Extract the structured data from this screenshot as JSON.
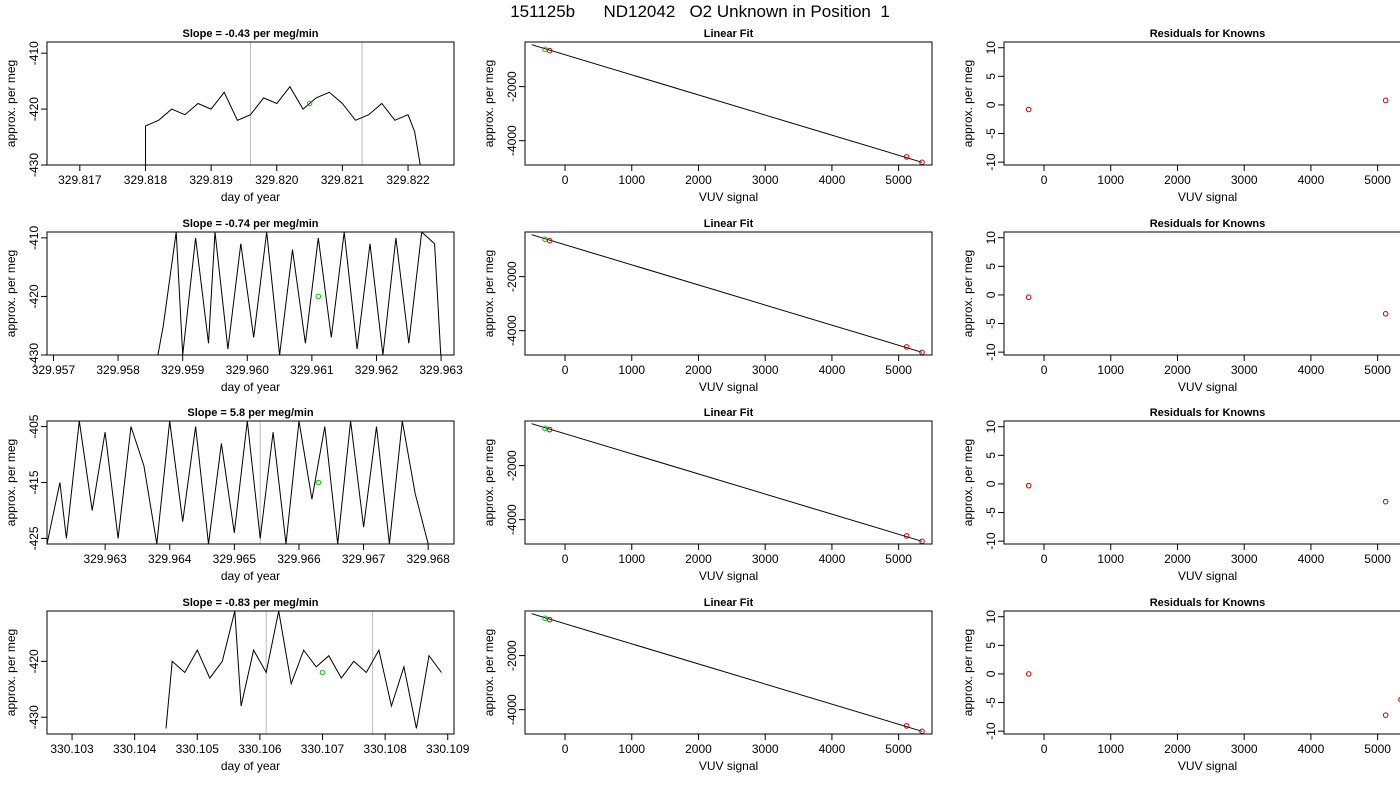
{
  "figure": {
    "title": "151125b      ND12042   O2 Unknown in Position  1"
  },
  "chart_data": [
    {
      "type": "line",
      "title": "Slope =  -0.43  per meg/min",
      "xlabel": "day of year",
      "ylabel": "approx. per meg",
      "xlim": [
        329.8165,
        329.8227
      ],
      "ylim": [
        -430,
        -408
      ],
      "xticks": [
        "329.817",
        "329.818",
        "329.819",
        "329.820",
        "329.821",
        "329.822"
      ],
      "yticks": [
        "-410",
        "-420",
        "-430"
      ],
      "vlines": [
        329.8196,
        329.8213
      ],
      "series": [
        {
          "x": [
            329.818,
            329.818,
            329.8182,
            329.8184,
            329.8186,
            329.8188,
            329.819,
            329.8192,
            329.8194,
            329.8196,
            329.8198,
            329.82,
            329.8202,
            329.8204,
            329.8206,
            329.8208,
            329.821,
            329.8212,
            329.8214,
            329.8216,
            329.8218,
            329.822,
            329.8221,
            329.8222
          ],
          "y": [
            -431,
            -423,
            -422,
            -420,
            -421,
            -419,
            -420,
            -417,
            -422,
            -421,
            -418,
            -419,
            -416,
            -420,
            -418,
            -417,
            -419,
            -422,
            -421,
            -419,
            -422,
            -421,
            -424,
            -431
          ]
        }
      ],
      "points": [
        {
          "x": 329.8205,
          "y": -419,
          "color": "#00cc00"
        }
      ]
    },
    {
      "type": "line",
      "title": "Linear Fit",
      "xlabel": "VUV signal",
      "ylabel": "approx. per meg",
      "xlim": [
        -600,
        5500
      ],
      "ylim": [
        -4900,
        -350
      ],
      "xticks": [
        0,
        1000,
        2000,
        3000,
        4000,
        5000
      ],
      "yticks": [
        -2000,
        -4000
      ],
      "line": [
        [
          -500,
          -450
        ],
        [
          5350,
          -4800
        ]
      ],
      "points": [
        {
          "x": -300,
          "y": -620,
          "color": "#00cc00"
        },
        {
          "x": -230,
          "y": -670,
          "color": "#cc0000"
        },
        {
          "x": 5120,
          "y": -4600,
          "color": "#cc0000"
        },
        {
          "x": 5350,
          "y": -4800,
          "color": "#cc0000"
        }
      ]
    },
    {
      "type": "scatter",
      "title": "Residuals for Knowns",
      "xlabel": "VUV signal",
      "ylabel": "approx. per meg",
      "xlim": [
        -600,
        5500
      ],
      "ylim": [
        -10.5,
        11
      ],
      "xticks": [
        0,
        1000,
        2000,
        3000,
        4000,
        5000
      ],
      "yticks": [
        10,
        5,
        0,
        -5,
        -10
      ],
      "points": [
        {
          "x": -230,
          "y": -0.8,
          "color": "#cc0000"
        },
        {
          "x": 5120,
          "y": 0.8,
          "color": "#cc0000"
        }
      ]
    },
    {
      "type": "line",
      "title": "Slope =  -0.74  per meg/min",
      "xlabel": "day of year",
      "ylabel": "approx. per meg",
      "xlim": [
        329.9569,
        329.9632
      ],
      "ylim": [
        -430,
        -409
      ],
      "xticks": [
        "329.957",
        "329.958",
        "329.959",
        "329.960",
        "329.961",
        "329.962",
        "329.963"
      ],
      "yticks": [
        "-410",
        "-420",
        "-430"
      ],
      "vlines": [],
      "series": [
        {
          "x": [
            329.9586,
            329.9587,
            329.9589,
            329.959,
            329.9592,
            329.9594,
            329.9595,
            329.9597,
            329.9599,
            329.9601,
            329.9603,
            329.9605,
            329.9607,
            329.9609,
            329.9611,
            329.9613,
            329.9615,
            329.9617,
            329.9619,
            329.9621,
            329.9623,
            329.9625,
            329.9627,
            329.9629,
            329.963
          ],
          "y": [
            -431,
            -425,
            -409,
            -430,
            -410,
            -428,
            -409,
            -429,
            -411,
            -427,
            -409,
            -430,
            -412,
            -428,
            -410,
            -427,
            -409,
            -429,
            -411,
            -430,
            -410,
            -428,
            -409,
            -411,
            -431
          ]
        }
      ],
      "points": [
        {
          "x": 329.9611,
          "y": -420,
          "color": "#00cc00"
        }
      ]
    },
    {
      "type": "line",
      "title": "Linear Fit",
      "xlabel": "VUV signal",
      "ylabel": "approx. per meg",
      "xlim": [
        -600,
        5500
      ],
      "ylim": [
        -4900,
        -350
      ],
      "xticks": [
        0,
        1000,
        2000,
        3000,
        4000,
        5000
      ],
      "yticks": [
        -2000,
        -4000
      ],
      "line": [
        [
          -500,
          -450
        ],
        [
          5350,
          -4800
        ]
      ],
      "points": [
        {
          "x": -300,
          "y": -620,
          "color": "#00cc00"
        },
        {
          "x": -230,
          "y": -670,
          "color": "#cc0000"
        },
        {
          "x": 5120,
          "y": -4600,
          "color": "#cc0000"
        },
        {
          "x": 5350,
          "y": -4800,
          "color": "#cc0000"
        }
      ]
    },
    {
      "type": "scatter",
      "title": "Residuals for Knowns",
      "xlabel": "VUV signal",
      "ylabel": "approx. per meg",
      "xlim": [
        -600,
        5500
      ],
      "ylim": [
        -10.5,
        11
      ],
      "xticks": [
        0,
        1000,
        2000,
        3000,
        4000,
        5000
      ],
      "yticks": [
        10,
        5,
        0,
        -5,
        -10
      ],
      "points": [
        {
          "x": -230,
          "y": -0.4,
          "color": "#cc0000"
        },
        {
          "x": 5120,
          "y": -3.3,
          "color": "#cc0000"
        }
      ]
    },
    {
      "type": "line",
      "title": "Slope =  5.8  per meg/min",
      "xlabel": "day of year",
      "ylabel": "approx. per meg",
      "xlim": [
        329.9621,
        329.9684
      ],
      "ylim": [
        -426,
        -404
      ],
      "xticks": [
        "329.963",
        "329.964",
        "329.965",
        "329.966",
        "329.967",
        "329.968"
      ],
      "yticks": [
        "-405",
        "-415",
        "-425"
      ],
      "vlines": [
        329.9654
      ],
      "series": [
        {
          "x": [
            329.9621,
            329.9623,
            329.9624,
            329.9626,
            329.9628,
            329.963,
            329.9632,
            329.9634,
            329.9636,
            329.9638,
            329.964,
            329.9642,
            329.9644,
            329.9646,
            329.9648,
            329.965,
            329.9652,
            329.9654,
            329.9656,
            329.9658,
            329.966,
            329.9662,
            329.9664,
            329.9666,
            329.9668,
            329.967,
            329.9672,
            329.9674,
            329.9676,
            329.9678,
            329.968
          ],
          "y": [
            -426,
            -415,
            -425,
            -404,
            -420,
            -406,
            -425,
            -405,
            -412,
            -426,
            -404,
            -422,
            -405,
            -426,
            -408,
            -424,
            -404,
            -425,
            -406,
            -426,
            -404,
            -418,
            -405,
            -426,
            -404,
            -423,
            -405,
            -426,
            -404,
            -417,
            -426
          ]
        }
      ],
      "points": [
        {
          "x": 329.9663,
          "y": -415,
          "color": "#00cc00"
        }
      ]
    },
    {
      "type": "line",
      "title": "Linear Fit",
      "xlabel": "VUV signal",
      "ylabel": "approx. per meg",
      "xlim": [
        -600,
        5500
      ],
      "ylim": [
        -4900,
        -350
      ],
      "xticks": [
        0,
        1000,
        2000,
        3000,
        4000,
        5000
      ],
      "yticks": [
        -2000,
        -4000
      ],
      "line": [
        [
          -500,
          -450
        ],
        [
          5350,
          -4800
        ]
      ],
      "points": [
        {
          "x": -300,
          "y": -620,
          "color": "#00cc00"
        },
        {
          "x": -230,
          "y": -670,
          "color": "#cc0000"
        },
        {
          "x": 5120,
          "y": -4600,
          "color": "#cc0000"
        },
        {
          "x": 5350,
          "y": -4800,
          "color": "#cc0000"
        }
      ]
    },
    {
      "type": "scatter",
      "title": "Residuals for Knowns",
      "xlabel": "VUV signal",
      "ylabel": "approx. per meg",
      "xlim": [
        -600,
        5500
      ],
      "ylim": [
        -10.5,
        11
      ],
      "xticks": [
        0,
        1000,
        2000,
        3000,
        4000,
        5000
      ],
      "yticks": [
        10,
        5,
        0,
        -5,
        -10
      ],
      "points": [
        {
          "x": -230,
          "y": -0.3,
          "color": "#cc0000"
        },
        {
          "x": 5120,
          "y": -3.1,
          "color": "#cc0000"
        }
      ]
    },
    {
      "type": "line",
      "title": "Slope =  -0.83  per meg/min",
      "xlabel": "day of year",
      "ylabel": "approx. per meg",
      "xlim": [
        330.1026,
        330.1091
      ],
      "ylim": [
        -433,
        -411
      ],
      "xticks": [
        "330.103",
        "330.104",
        "330.105",
        "330.106",
        "330.107",
        "330.108",
        "330.109"
      ],
      "yticks": [
        "-420",
        "-430"
      ],
      "vlines": [
        330.1061,
        330.1078
      ],
      "series": [
        {
          "x": [
            330.1045,
            330.1046,
            330.1048,
            330.105,
            330.1052,
            330.1054,
            330.1056,
            330.1057,
            330.1059,
            330.1061,
            330.1063,
            330.1065,
            330.1067,
            330.1069,
            330.1071,
            330.1073,
            330.1075,
            330.1077,
            330.1079,
            330.1081,
            330.1083,
            330.1085,
            330.1087,
            330.1089
          ],
          "y": [
            -432,
            -420,
            -422,
            -418,
            -423,
            -420,
            -411,
            -428,
            -418,
            -422,
            -411,
            -424,
            -418,
            -421,
            -419,
            -423,
            -420,
            -422,
            -418,
            -428,
            -421,
            -432,
            -419,
            -422
          ]
        }
      ],
      "points": [
        {
          "x": 330.107,
          "y": -422,
          "color": "#00cc00"
        }
      ]
    },
    {
      "type": "line",
      "title": "Linear Fit",
      "xlabel": "VUV signal",
      "ylabel": "approx. per meg",
      "xlim": [
        -600,
        5500
      ],
      "ylim": [
        -4900,
        -350
      ],
      "xticks": [
        0,
        1000,
        2000,
        3000,
        4000,
        5000
      ],
      "yticks": [
        -2000,
        -4000
      ],
      "line": [
        [
          -500,
          -450
        ],
        [
          5350,
          -4800
        ]
      ],
      "points": [
        {
          "x": -300,
          "y": -620,
          "color": "#00cc00"
        },
        {
          "x": -230,
          "y": -670,
          "color": "#cc0000"
        },
        {
          "x": 5120,
          "y": -4600,
          "color": "#cc0000"
        },
        {
          "x": 5350,
          "y": -4800,
          "color": "#cc0000"
        }
      ]
    },
    {
      "type": "scatter",
      "title": "Residuals for Knowns",
      "xlabel": "VUV signal",
      "ylabel": "approx. per meg",
      "xlim": [
        -600,
        5500
      ],
      "ylim": [
        -10.5,
        11
      ],
      "xticks": [
        0,
        1000,
        2000,
        3000,
        4000,
        5000
      ],
      "yticks": [
        10,
        5,
        0,
        -5,
        -10
      ],
      "points": [
        {
          "x": -230,
          "y": 0.0,
          "color": "#cc0000"
        },
        {
          "x": 5120,
          "y": -7.2,
          "color": "#cc0000"
        },
        {
          "x": 5350,
          "y": -4.5,
          "color": "#cc0000"
        }
      ]
    }
  ]
}
